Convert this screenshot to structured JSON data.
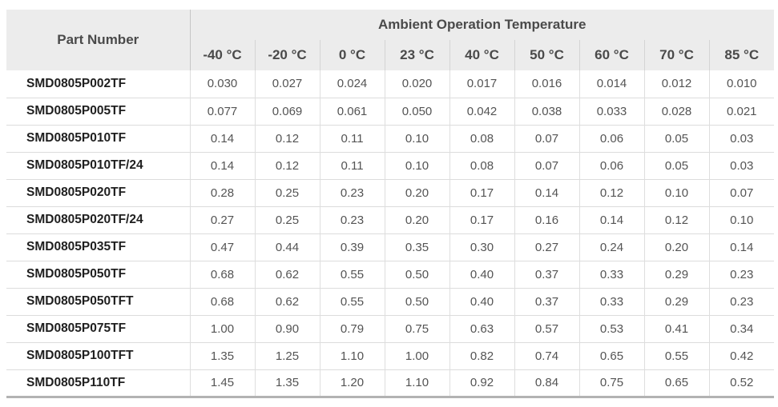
{
  "table": {
    "part_number_header": "Part Number",
    "group_header": "Ambient Operation Temperature",
    "columns": [
      "-40 °C",
      "-20 °C",
      "0 °C",
      "23 °C",
      "40 °C",
      "50 °C",
      "60 °C",
      "70 °C",
      "85 °C"
    ],
    "rows": [
      {
        "part_number": "SMD0805P002TF",
        "values": [
          "0.030",
          "0.027",
          "0.024",
          "0.020",
          "0.017",
          "0.016",
          "0.014",
          "0.012",
          "0.010"
        ]
      },
      {
        "part_number": "SMD0805P005TF",
        "values": [
          "0.077",
          "0.069",
          "0.061",
          "0.050",
          "0.042",
          "0.038",
          "0.033",
          "0.028",
          "0.021"
        ]
      },
      {
        "part_number": "SMD0805P010TF",
        "values": [
          "0.14",
          "0.12",
          "0.11",
          "0.10",
          "0.08",
          "0.07",
          "0.06",
          "0.05",
          "0.03"
        ]
      },
      {
        "part_number": "SMD0805P010TF/24",
        "values": [
          "0.14",
          "0.12",
          "0.11",
          "0.10",
          "0.08",
          "0.07",
          "0.06",
          "0.05",
          "0.03"
        ]
      },
      {
        "part_number": "SMD0805P020TF",
        "values": [
          "0.28",
          "0.25",
          "0.23",
          "0.20",
          "0.17",
          "0.14",
          "0.12",
          "0.10",
          "0.07"
        ]
      },
      {
        "part_number": "SMD0805P020TF/24",
        "values": [
          "0.27",
          "0.25",
          "0.23",
          "0.20",
          "0.17",
          "0.16",
          "0.14",
          "0.12",
          "0.10"
        ]
      },
      {
        "part_number": "SMD0805P035TF",
        "values": [
          "0.47",
          "0.44",
          "0.39",
          "0.35",
          "0.30",
          "0.27",
          "0.24",
          "0.20",
          "0.14"
        ]
      },
      {
        "part_number": "SMD0805P050TF",
        "values": [
          "0.68",
          "0.62",
          "0.55",
          "0.50",
          "0.40",
          "0.37",
          "0.33",
          "0.29",
          "0.23"
        ]
      },
      {
        "part_number": "SMD0805P050TFT",
        "values": [
          "0.68",
          "0.62",
          "0.55",
          "0.50",
          "0.40",
          "0.37",
          "0.33",
          "0.29",
          "0.23"
        ]
      },
      {
        "part_number": "SMD0805P075TF",
        "values": [
          "1.00",
          "0.90",
          "0.79",
          "0.75",
          "0.63",
          "0.57",
          "0.53",
          "0.41",
          "0.34"
        ]
      },
      {
        "part_number": "SMD0805P100TFT",
        "values": [
          "1.35",
          "1.25",
          "1.10",
          "1.00",
          "0.82",
          "0.74",
          "0.65",
          "0.55",
          "0.42"
        ]
      },
      {
        "part_number": "SMD0805P110TF",
        "values": [
          "1.45",
          "1.35",
          "1.20",
          "1.10",
          "0.92",
          "0.84",
          "0.75",
          "0.65",
          "0.52"
        ]
      }
    ]
  },
  "colors": {
    "header_background": "#ececec",
    "header_text": "#4a4a4a",
    "part_number_text": "#1f1f1f",
    "value_text": "#545454",
    "row_border": "#dcdcdc",
    "column_divider": "#dedede",
    "bottom_border": "#b3b3b3"
  }
}
